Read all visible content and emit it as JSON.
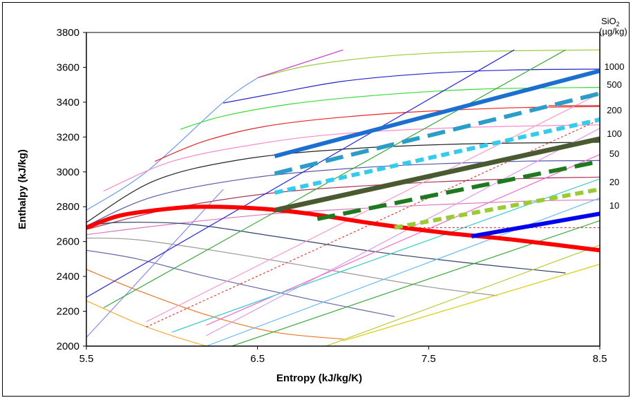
{
  "chart_data": {
    "type": "line",
    "title": "",
    "xlabel": "Entropy   (kJ/kg/K)",
    "ylabel": "Enthalpy   (kJ/kg)",
    "xlim": [
      5.5,
      8.5
    ],
    "ylim": [
      2000,
      3800
    ],
    "xticks": [
      "5.5",
      "6.5",
      "7.5",
      "8.5"
    ],
    "yticks": [
      "2000",
      "2200",
      "2400",
      "2600",
      "2800",
      "3000",
      "3200",
      "3400",
      "3600",
      "3800"
    ],
    "grid": false,
    "legend": {
      "title_line1": "SiO",
      "title_sub": "2",
      "title_line2": "(µg/kg)",
      "placement": "right",
      "levels": [
        "1000",
        "500",
        "200",
        "100",
        "50",
        "20",
        "10"
      ]
    },
    "background_series": [
      {
        "color": "#6699ff",
        "x": [
          5.5,
          5.85,
          6.3,
          6.5
        ],
        "y": [
          2780,
          3000,
          3400,
          3540
        ]
      },
      {
        "color": "#99cc33",
        "x": [
          6.5,
          6.8,
          7.2,
          7.6,
          8.0,
          8.5
        ],
        "y": [
          3540,
          3610,
          3660,
          3685,
          3695,
          3700
        ]
      },
      {
        "color": "#2222cc",
        "x": [
          6.3,
          6.6,
          7.0,
          7.5,
          8.0,
          8.5
        ],
        "y": [
          3395,
          3450,
          3520,
          3565,
          3585,
          3590
        ]
      },
      {
        "color": "#33dd33",
        "x": [
          6.05,
          6.3,
          6.7,
          7.2,
          7.8,
          8.5
        ],
        "y": [
          3245,
          3320,
          3390,
          3440,
          3475,
          3485
        ]
      },
      {
        "color": "#ee2222",
        "x": [
          5.9,
          6.2,
          6.6,
          7.2,
          7.9,
          8.5
        ],
        "y": [
          3060,
          3180,
          3270,
          3330,
          3365,
          3375
        ]
      },
      {
        "color": "#ff88cc",
        "x": [
          5.6,
          6.0,
          6.5,
          7.0,
          7.7,
          8.5
        ],
        "y": [
          2890,
          3060,
          3160,
          3220,
          3255,
          3270
        ]
      },
      {
        "color": "#222222",
        "x": [
          5.5,
          5.9,
          6.4,
          7.0,
          7.7,
          8.5
        ],
        "y": [
          2710,
          2950,
          3070,
          3130,
          3160,
          3170
        ]
      },
      {
        "color": "#5555aa",
        "x": [
          5.5,
          5.9,
          6.5,
          7.2,
          8.0,
          8.5
        ],
        "y": [
          2690,
          2860,
          2970,
          3030,
          3060,
          3065
        ]
      },
      {
        "color": "#aa3355",
        "x": [
          5.5,
          6.0,
          6.6,
          7.3,
          8.0,
          8.5
        ],
        "y": [
          2670,
          2790,
          2880,
          2930,
          2960,
          2970
        ]
      },
      {
        "color": "#dd77bb",
        "x": [
          5.5,
          6.0,
          6.6,
          7.3,
          8.0,
          8.5
        ],
        "y": [
          2640,
          2700,
          2760,
          2800,
          2830,
          2840
        ]
      },
      {
        "color": "#2c4266",
        "x": [
          5.5,
          5.7,
          6.1,
          6.6,
          7.2,
          7.8,
          8.3
        ],
        "y": [
          2690,
          2710,
          2700,
          2630,
          2540,
          2470,
          2420
        ]
      },
      {
        "color": "#999999",
        "x": [
          5.5,
          5.8,
          6.3,
          6.9,
          7.5,
          7.9
        ],
        "y": [
          2620,
          2610,
          2540,
          2440,
          2340,
          2290
        ]
      },
      {
        "color": "#6666aa",
        "x": [
          5.5,
          5.8,
          6.2,
          6.8,
          7.3
        ],
        "y": [
          2550,
          2500,
          2400,
          2270,
          2170
        ]
      },
      {
        "color": "#ee7722",
        "x": [
          5.5,
          5.8,
          6.2,
          6.6,
          7.0
        ],
        "y": [
          2440,
          2320,
          2180,
          2080,
          2040
        ]
      },
      {
        "color": "#ffaa33",
        "x": [
          5.5,
          5.8,
          6.0,
          6.2
        ],
        "y": [
          2260,
          2130,
          2060,
          2000
        ]
      },
      {
        "color": "#cc33cc",
        "x": [
          6.5,
          7.0
        ],
        "y": [
          3540,
          3700
        ]
      },
      {
        "color": "#8888ff",
        "x": [
          5.5,
          6.3
        ],
        "y": [
          2050,
          2900
        ]
      },
      {
        "color": "#2222ee",
        "x": [
          5.5,
          8.0
        ],
        "y": [
          2280,
          3700
        ]
      },
      {
        "color": "#33aa33",
        "x": [
          5.6,
          8.3
        ],
        "y": [
          2220,
          3700
        ]
      },
      {
        "color": "#ff99cc",
        "x": [
          5.85,
          8.5
        ],
        "y": [
          2140,
          3450
        ]
      },
      {
        "color": "#dd99ee",
        "x": [
          6.2,
          8.5
        ],
        "y": [
          2060,
          3250
        ]
      },
      {
        "color": "#ee3333",
        "dash": "3 3",
        "x": [
          5.85,
          8.5
        ],
        "y": [
          2110,
          3300
        ]
      },
      {
        "color": "#ff66cc",
        "x": [
          6.2,
          8.5
        ],
        "y": [
          2120,
          3100
        ]
      },
      {
        "color": "#33cccc",
        "x": [
          6.0,
          8.5
        ],
        "y": [
          2080,
          2960
        ]
      },
      {
        "color": "#66bbff",
        "x": [
          6.2,
          8.5
        ],
        "y": [
          2000,
          2850
        ]
      },
      {
        "color": "#33aa33",
        "x": [
          6.35,
          8.5
        ],
        "y": [
          2000,
          2720
        ]
      },
      {
        "color": "#bbcc33",
        "x": [
          6.9,
          8.5
        ],
        "y": [
          2000,
          2580
        ]
      },
      {
        "color": "#ddcc00",
        "x": [
          7.0,
          8.5
        ],
        "y": [
          2030,
          2470
        ]
      },
      {
        "color": "#ee3333",
        "dash": "3 3",
        "x": [
          7.3,
          8.5
        ],
        "y": [
          2680,
          2680
        ]
      },
      {
        "color": "#cc3333",
        "x": [
          8.2,
          8.5
        ],
        "y": [
          3380,
          3380
        ]
      }
    ],
    "highlight_series": [
      {
        "color": "#ff0000",
        "width": 6,
        "dash": "",
        "x": [
          5.5,
          5.7,
          6.0,
          6.2,
          6.5,
          6.8,
          7.2,
          7.6,
          8.0,
          8.5
        ],
        "y": [
          2680,
          2750,
          2790,
          2800,
          2790,
          2760,
          2700,
          2650,
          2610,
          2550
        ]
      },
      {
        "color": "#1a6fd0",
        "width": 6,
        "dash": "",
        "x": [
          6.6,
          8.5
        ],
        "y": [
          3090,
          3580
        ]
      },
      {
        "color": "#2a9ec8",
        "width": 6,
        "dash": "26 12",
        "x": [
          6.6,
          8.5
        ],
        "y": [
          2990,
          3450
        ]
      },
      {
        "color": "#33ccee",
        "width": 6,
        "dash": "12 7",
        "x": [
          6.6,
          8.5
        ],
        "y": [
          2880,
          3300
        ]
      },
      {
        "color": "#4a5a30",
        "width": 7,
        "dash": "",
        "x": [
          6.6,
          8.5
        ],
        "y": [
          2780,
          3190
        ]
      },
      {
        "color": "#1e7a1e",
        "width": 6,
        "dash": "26 12",
        "x": [
          6.85,
          8.5
        ],
        "y": [
          2730,
          3060
        ]
      },
      {
        "color": "#99cc33",
        "width": 6,
        "dash": "12 7",
        "x": [
          7.3,
          8.5
        ],
        "y": [
          2680,
          2900
        ]
      },
      {
        "color": "#0000ee",
        "width": 6,
        "dash": "",
        "x": [
          7.75,
          8.5
        ],
        "y": [
          2630,
          2760
        ]
      }
    ]
  }
}
